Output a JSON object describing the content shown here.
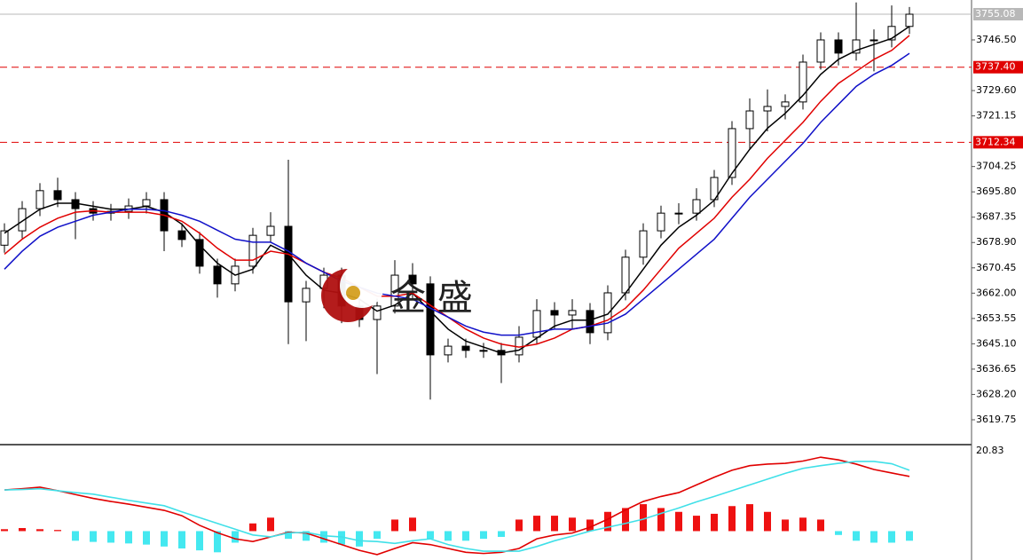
{
  "chart_data": [
    {
      "type": "candlestick",
      "watermark": "金 盛",
      "ylim": [
        3611.75,
        3759.82
      ],
      "yticks": [
        {
          "value": 3746.5,
          "label": "3746.50"
        },
        {
          "value": 3729.6,
          "label": "3729.60"
        },
        3721.15,
        3704.25,
        {
          "value": 3695.8,
          "label": "3695.80"
        },
        3687.35,
        {
          "value": 3678.9,
          "label": "3678.90"
        },
        3670.45,
        {
          "value": 3662,
          "label": "3662.00"
        },
        3653.55,
        {
          "value": 3645.1,
          "label": "3645.10"
        },
        3636.65,
        {
          "value": 3628.2,
          "label": "3628.20"
        },
        3619.75
      ],
      "levels": [
        {
          "value": 3737.4,
          "label": "3737.40"
        },
        3712.34
      ],
      "level_color": "#e00000",
      "current_price": 3755.08,
      "current_color": "#b8b8b8",
      "up_color": "#ffffff",
      "down_color": "#000000",
      "open": [
        3678.0,
        3682.8,
        3690.2,
        3696.2,
        3693.2,
        3690.2,
        3688.7,
        3689.3,
        3691.1,
        3693.2,
        3682.8,
        3679.9,
        3671.0,
        3665.1,
        3671.0,
        3681.3,
        3684.3,
        3659.1,
        3663.6,
        3668.0,
        3657.7,
        3653.2,
        3657.7,
        3668.0,
        3665.1,
        3641.4,
        3644.3,
        3642.9,
        3642.9,
        3641.4,
        3647.3,
        3656.2,
        3654.7,
        3656.2,
        3648.8,
        3662.1,
        3674.0,
        3682.8,
        3688.7,
        3688.7,
        3693.2,
        3700.6,
        3716.9,
        3722.8,
        3724.3,
        3725.8,
        3739.1,
        3746.5,
        3742.1,
        3746.5,
        3746.5,
        3751.0
      ],
      "high": [
        3685.3,
        3692.7,
        3698.7,
        3700.5,
        3695.7,
        3692.7,
        3691.8,
        3693.6,
        3695.7,
        3695.7,
        3685.3,
        3682.4,
        3673.5,
        3673.5,
        3683.8,
        3689.0,
        3706.5,
        3666.1,
        3670.5,
        3670.5,
        3660.2,
        3660.2,
        3673.0,
        3672.0,
        3667.6,
        3646.8,
        3646.8,
        3645.4,
        3645.4,
        3651.0,
        3660.0,
        3659.0,
        3660.0,
        3658.7,
        3664.6,
        3676.5,
        3685.3,
        3691.2,
        3692.0,
        3697.0,
        3703.1,
        3719.4,
        3727.0,
        3730.0,
        3728.3,
        3741.6,
        3749.0,
        3749.0,
        3759.0,
        3750.0,
        3758.0,
        3757.5
      ],
      "low": [
        3675.5,
        3680.3,
        3687.7,
        3690.7,
        3680.0,
        3686.2,
        3686.2,
        3686.8,
        3688.6,
        3676.0,
        3677.4,
        3668.5,
        3660.5,
        3662.6,
        3668.5,
        3678.8,
        3645.0,
        3646.0,
        3657.0,
        3652.0,
        3650.7,
        3635.0,
        3655.2,
        3660.0,
        3626.5,
        3638.9,
        3640.4,
        3640.4,
        3632.0,
        3638.9,
        3644.8,
        3650.0,
        3650.0,
        3645.0,
        3646.3,
        3659.6,
        3671.5,
        3680.3,
        3685.0,
        3686.2,
        3690.7,
        3698.1,
        3710.0,
        3716.0,
        3720.0,
        3723.3,
        3736.6,
        3738.0,
        3739.6,
        3736.0,
        3744.0,
        3748.5
      ],
      "close": [
        3682.8,
        3690.2,
        3696.2,
        3693.2,
        3690.2,
        3688.7,
        3689.3,
        3691.1,
        3693.2,
        3682.8,
        3679.9,
        3671.0,
        3665.1,
        3671.0,
        3681.3,
        3684.3,
        3659.1,
        3663.6,
        3668.0,
        3657.7,
        3653.2,
        3657.7,
        3668.0,
        3665.1,
        3641.4,
        3644.3,
        3642.9,
        3642.9,
        3641.4,
        3647.3,
        3656.2,
        3654.7,
        3656.2,
        3648.8,
        3662.1,
        3674.0,
        3682.8,
        3688.7,
        3688.7,
        3693.2,
        3700.6,
        3716.9,
        3722.8,
        3724.3,
        3725.8,
        3739.1,
        3746.5,
        3742.1,
        3746.5,
        3746.5,
        3751.0,
        3755.08
      ],
      "ma": [
        {
          "color": "#000000",
          "values": [
            3682,
            3686,
            3690,
            3692,
            3692,
            3691,
            3690,
            3690,
            3691,
            3689,
            3685,
            3678,
            3672,
            3668,
            3670,
            3678,
            3675,
            3668,
            3663,
            3662,
            3660,
            3656,
            3658,
            3662,
            3656,
            3650,
            3646,
            3644,
            3642,
            3643,
            3647,
            3651,
            3653,
            3653,
            3655,
            3662,
            3670,
            3678,
            3684,
            3688,
            3693,
            3702,
            3710,
            3717,
            3722,
            3728,
            3735,
            3740,
            3743,
            3745,
            3747,
            3751
          ]
        },
        {
          "color": "#e00000",
          "values": [
            3675,
            3680,
            3684,
            3687,
            3689,
            3689.5,
            3689,
            3689,
            3689,
            3688,
            3686,
            3682,
            3677,
            3673,
            3673,
            3676,
            3675,
            3672,
            3669,
            3667,
            3664,
            3661,
            3661,
            3662,
            3658,
            3654,
            3650,
            3647,
            3645,
            3644,
            3645,
            3647,
            3650,
            3651,
            3653,
            3657,
            3663,
            3670,
            3677,
            3682,
            3687,
            3694,
            3700,
            3707,
            3713,
            3719,
            3726,
            3732,
            3736,
            3740,
            3743,
            3748
          ]
        },
        {
          "color": "#1010c8",
          "values": [
            3670,
            3676,
            3681,
            3684,
            3686,
            3688,
            3689,
            3690,
            3690,
            3689.5,
            3688,
            3686,
            3683,
            3680,
            3679,
            3679,
            3676,
            3672,
            3669,
            3666,
            3664,
            3662,
            3661,
            3660,
            3657,
            3654,
            3651,
            3649,
            3648,
            3648,
            3649,
            3650,
            3650,
            3651,
            3652,
            3655,
            3660,
            3665,
            3670,
            3675,
            3680,
            3687,
            3694,
            3700,
            3706,
            3712,
            3719,
            3725,
            3731,
            3735,
            3738,
            3742
          ]
        }
      ]
    },
    {
      "type": "macd",
      "ylim": [
        -7.5,
        22
      ],
      "yticks": [
        20.83
      ],
      "hist_up_color": "#ee1111",
      "hist_down_color": "#44e8f0",
      "histogram": [
        0.5,
        0.8,
        0.5,
        0.3,
        -2.5,
        -2.8,
        -3,
        -3.2,
        -3.5,
        -4,
        -4.5,
        -5,
        -5.5,
        -3,
        2,
        3.5,
        -2,
        -2.5,
        -3,
        -3.5,
        -4,
        -2,
        3,
        3.5,
        -2,
        -2.5,
        -2.5,
        -2,
        -1.5,
        3,
        4,
        4,
        3.5,
        3,
        5,
        6,
        7,
        6,
        5,
        4,
        4.5,
        6.5,
        7,
        5,
        3,
        3.5,
        3,
        -1,
        -2.5,
        -3,
        -3,
        -2.5
      ],
      "lines": [
        {
          "color": "#e00000",
          "values": [
            10.7,
            11.0,
            11.4,
            10.5,
            9.5,
            8.5,
            7.7,
            7.0,
            6.2,
            5.4,
            4.0,
            1.5,
            -0.4,
            -2.0,
            -2.7,
            -1.5,
            -0.3,
            -0.5,
            -2.0,
            -3.5,
            -5.0,
            -6.1,
            -4.5,
            -3.0,
            -3.5,
            -4.5,
            -5.5,
            -5.8,
            -5.5,
            -4.5,
            -2.0,
            -1.0,
            -0.5,
            1.0,
            3.1,
            5.5,
            7.7,
            9.0,
            10.0,
            12.0,
            14.0,
            15.8,
            17.0,
            17.4,
            17.6,
            18.2,
            19.2,
            18.5,
            17.4,
            16.0,
            15.1,
            14.2
          ]
        },
        {
          "color": "#40e0e8",
          "values": [
            10.7,
            10.8,
            11.0,
            10.5,
            10.0,
            9.6,
            8.8,
            8.0,
            7.3,
            6.6,
            5.0,
            3.5,
            2.0,
            0.5,
            -1.0,
            -1.5,
            -0.5,
            -0.3,
            -1.2,
            -1.5,
            -2.5,
            -2.7,
            -3.2,
            -2.5,
            -2.0,
            -3.5,
            -4.5,
            -5.2,
            -5.2,
            -5.2,
            -4.0,
            -2.5,
            -1.3,
            0.0,
            1.0,
            2.0,
            3.1,
            4.6,
            6.0,
            7.6,
            9.0,
            10.5,
            12.0,
            13.5,
            15.0,
            16.3,
            17.0,
            17.6,
            18.1,
            18.1,
            17.5,
            15.8
          ]
        }
      ]
    }
  ]
}
